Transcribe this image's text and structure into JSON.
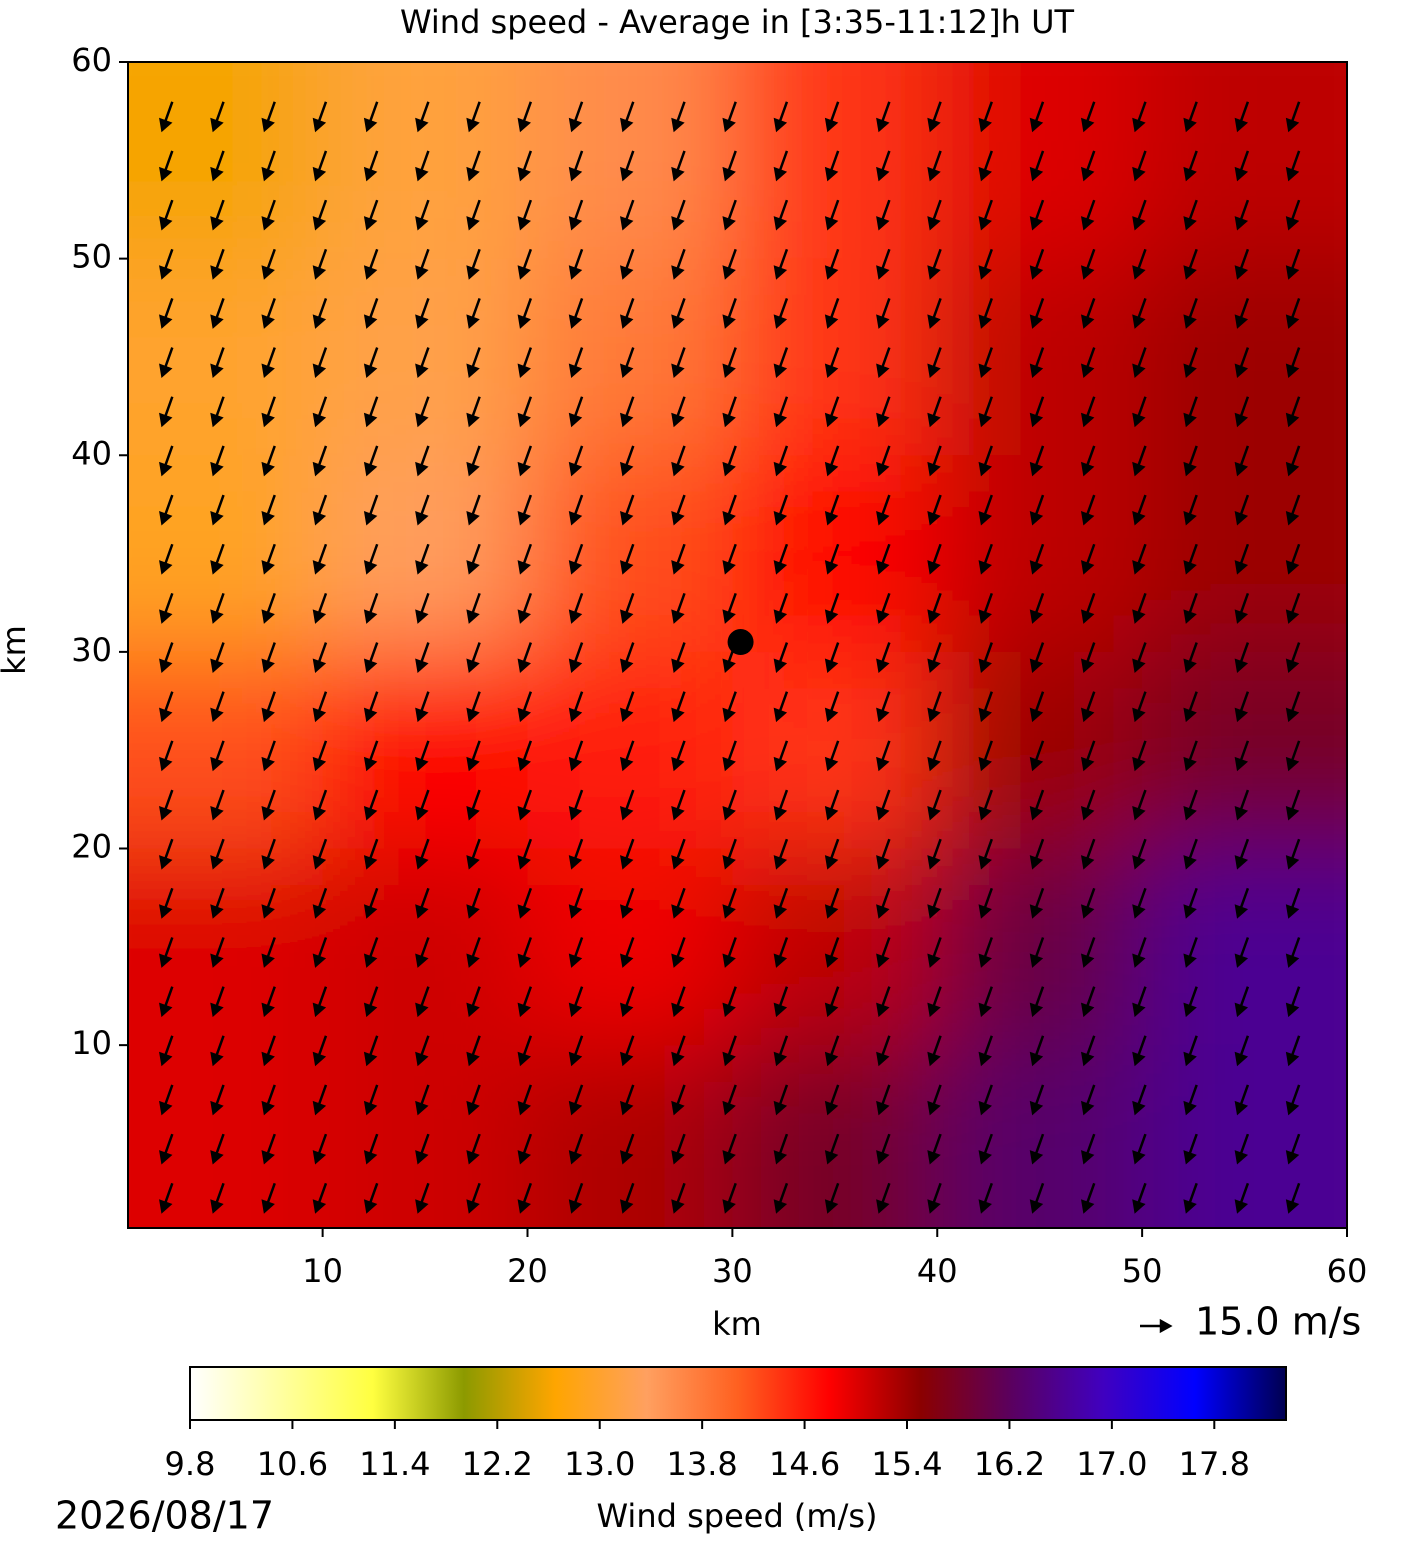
{
  "chart_data": {
    "type": "heatmap",
    "title": "Wind speed - Average in [3:35-11:12]h UT",
    "xlabel": "km",
    "ylabel": "km",
    "xlim": [
      0.5,
      60
    ],
    "ylim": [
      0.7,
      60
    ],
    "xticks": [
      10,
      20,
      30,
      40,
      50,
      60
    ],
    "yticks": [
      10,
      20,
      30,
      40,
      50,
      60
    ],
    "x": [
      5,
      15,
      25,
      35,
      45,
      55
    ],
    "y": [
      55,
      45,
      35,
      25,
      15,
      5
    ],
    "z": [
      [
        12.6,
        13.1,
        13.6,
        14.4,
        15.0,
        15.2
      ],
      [
        13.0,
        13.2,
        13.8,
        14.4,
        15.2,
        15.4
      ],
      [
        12.9,
        13.4,
        14.2,
        14.8,
        15.2,
        15.4
      ],
      [
        14.2,
        14.8,
        14.6,
        14.4,
        15.4,
        15.8
      ],
      [
        15.0,
        15.1,
        14.9,
        15.2,
        16.0,
        16.6
      ],
      [
        15.0,
        15.1,
        15.3,
        15.8,
        16.3,
        16.6
      ]
    ],
    "colormap": [
      "#ffffff",
      "#ffffa0",
      "#ffff40",
      "#8c9a00",
      "#ffa500",
      "#ffa060",
      "#ff6020",
      "#ff0000",
      "#8b0000",
      "#5a0060",
      "#4000c0",
      "#0000ff",
      "#000050"
    ],
    "quiver": {
      "x": [
        2.5,
        5,
        7.5,
        10,
        12.5,
        15,
        17.5,
        20,
        22.5,
        25,
        27.5,
        30,
        32.5,
        35,
        37.5,
        40,
        42.5,
        45,
        47.5,
        50,
        52.5,
        55,
        57.5
      ],
      "y": [
        2.5,
        5,
        7.5,
        10,
        12.5,
        15,
        17.5,
        20,
        22.5,
        25,
        27.5,
        30,
        32.5,
        35,
        37.5,
        40,
        42.5,
        45,
        47.5,
        50,
        52.5,
        55,
        57.5
      ],
      "u": -5,
      "v": -14,
      "key_value": 15,
      "key_label": "15.0 m/s"
    },
    "marker": {
      "x": 30.4,
      "y": 30.5
    },
    "colorbar": {
      "label": "Wind speed (m/s)",
      "lim": [
        9.8,
        18.36
      ],
      "ticks": [
        9.8,
        10.6,
        11.4,
        12.2,
        {
          "value": 13,
          "label": "13.0"
        },
        13.8,
        14.6,
        15.4,
        16.2,
        {
          "value": 17,
          "label": "17.0"
        },
        17.8
      ]
    },
    "date": "2026/08/17"
  }
}
